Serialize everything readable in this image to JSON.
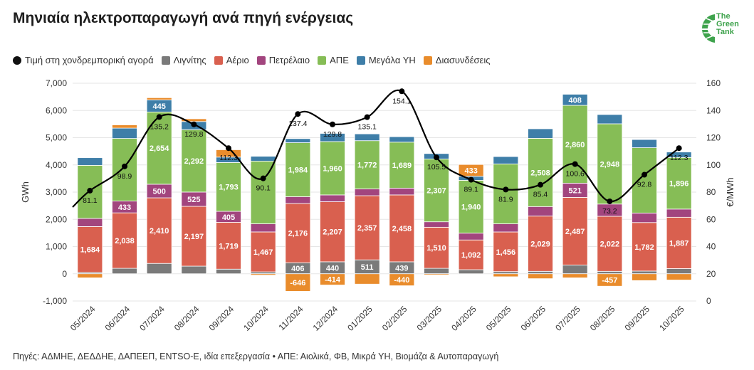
{
  "title": "Μηνιαία ηλεκτροπαραγωγή ανά πηγή ενέργειας",
  "logo": {
    "line1": "The",
    "line2": "Green",
    "line3": "Tank"
  },
  "source": "Πηγές: ΑΔΜΗΕ, ΔΕΔΔΗΕ, ΔΑΠΕΕΠ, ENTSO-E, ιδία επεξεργασία • ΑΠΕ: Αιολικά, ΦΒ, Μικρά ΥΗ, Βιομάζα & Αυτοπαραγωγή",
  "legend": [
    {
      "label": "Τιμή στη χονδρεμπορική αγορά",
      "color": "#111111",
      "kind": "dot"
    },
    {
      "label": "Λιγνίτης",
      "color": "#7a7a7a",
      "kind": "box"
    },
    {
      "label": "Αέριο",
      "color": "#d9604f",
      "kind": "box"
    },
    {
      "label": "Πετρέλαιο",
      "color": "#a2457e",
      "kind": "box"
    },
    {
      "label": "ΑΠΕ",
      "color": "#86bd56",
      "kind": "box"
    },
    {
      "label": "Μεγάλα ΥΗ",
      "color": "#3e7ea8",
      "kind": "box"
    },
    {
      "label": "Διασυνδέσεις",
      "color": "#e98c2c",
      "kind": "box"
    }
  ],
  "chart_data": {
    "type": "bar",
    "stacked": true,
    "categories": [
      "05/2024",
      "06/2024",
      "07/2024",
      "08/2024",
      "09/2024",
      "10/2024",
      "11/2024",
      "12/2024",
      "01/2025",
      "02/2025",
      "03/2025",
      "04/2025",
      "05/2025",
      "06/2025",
      "07/2025",
      "08/2025",
      "09/2025",
      "10/2025"
    ],
    "series": [
      {
        "name": "Λιγνίτης",
        "color": "#7a7a7a",
        "values": [
          50,
          200,
          380,
          280,
          170,
          70,
          406,
          440,
          511,
          439,
          200,
          150,
          80,
          90,
          320,
          90,
          100,
          190
        ],
        "labels": [
          null,
          null,
          null,
          null,
          null,
          null,
          "406",
          "440",
          "511",
          "439",
          null,
          null,
          null,
          null,
          null,
          null,
          null,
          null
        ]
      },
      {
        "name": "Αέριο",
        "color": "#d9604f",
        "values": [
          1684,
          2038,
          2410,
          2197,
          1719,
          1467,
          2176,
          2207,
          2357,
          2458,
          1510,
          1092,
          1456,
          2029,
          2487,
          2022,
          1782,
          1887
        ],
        "labels": [
          "1,684",
          "2,038",
          "2,410",
          "2,197",
          "1,719",
          "1,467",
          "2,176",
          "2,207",
          "2,357",
          "2,458",
          "1,510",
          "1,092",
          "1,456",
          "2,029",
          "2,487",
          "2,022",
          "1,782",
          "1,887"
        ]
      },
      {
        "name": "Πετρέλαιο",
        "color": "#a2457e",
        "values": [
          300,
          433,
          500,
          525,
          405,
          300,
          250,
          250,
          250,
          250,
          200,
          250,
          300,
          350,
          521,
          450,
          350,
          300
        ],
        "labels": [
          null,
          "433",
          "500",
          "525",
          "405",
          null,
          null,
          null,
          null,
          null,
          null,
          null,
          null,
          null,
          "521",
          null,
          null,
          null
        ]
      },
      {
        "name": "ΑΠΕ",
        "color": "#86bd56",
        "values": [
          1950,
          2300,
          2654,
          2292,
          1793,
          2300,
          1984,
          1960,
          1772,
          1689,
          2307,
          1940,
          2200,
          2508,
          2860,
          2948,
          2400,
          1896
        ],
        "labels": [
          null,
          null,
          "2,654",
          "2,292",
          "1,793",
          null,
          "1,984",
          "1,960",
          "1,772",
          "1,689",
          "2,307",
          "1,940",
          null,
          "2,508",
          "2,860",
          "2,948",
          null,
          "1,896"
        ]
      },
      {
        "name": "Μεγάλα ΥΗ",
        "color": "#3e7ea8",
        "values": [
          280,
          380,
          445,
          300,
          200,
          180,
          150,
          300,
          250,
          200,
          200,
          150,
          270,
          350,
          408,
          340,
          300,
          200
        ],
        "labels": [
          null,
          null,
          "445",
          null,
          null,
          null,
          null,
          null,
          null,
          null,
          null,
          null,
          null,
          null,
          "408",
          null,
          null,
          null
        ]
      },
      {
        "name": "Διασυνδέσεις",
        "color": "#e98c2c",
        "values": [
          -150,
          120,
          80,
          100,
          270,
          -50,
          -646,
          -414,
          -380,
          -440,
          -40,
          433,
          -110,
          -180,
          -150,
          -457,
          -250,
          -230
        ],
        "labels": [
          null,
          null,
          null,
          null,
          null,
          null,
          "-646",
          "-414",
          null,
          "-440",
          null,
          "433",
          null,
          null,
          null,
          "-457",
          null,
          null
        ]
      }
    ],
    "price": {
      "name": "Τιμή στη χονδρεμπορική αγορά",
      "values": [
        81.1,
        98.9,
        135.2,
        129.8,
        112.3,
        90.1,
        137.4,
        129.8,
        135.1,
        154.1,
        105.5,
        89.1,
        81.9,
        85.4,
        100.6,
        73.2,
        92.8,
        112.3
      ],
      "labels": [
        "81.1",
        "98.9",
        "135.2",
        "129.8",
        "112.3",
        "90.1",
        "137.4",
        "129.8",
        "135.1",
        "154.1",
        "105.5",
        "89.1",
        "81.9",
        "85.4",
        "100.6",
        "73.2",
        "92.8",
        "112.3"
      ]
    },
    "y_left": {
      "label": "GWh",
      "min": -1000,
      "max": 7000,
      "step": 1000,
      "ticks": [
        "-1,000",
        "0",
        "1,000",
        "2,000",
        "3,000",
        "4,000",
        "5,000",
        "6,000",
        "7,000"
      ]
    },
    "y_right": {
      "label": "€/MWh",
      "min": 0,
      "max": 160,
      "step": 20,
      "ticks": [
        "0",
        "20",
        "40",
        "60",
        "80",
        "100",
        "120",
        "140",
        "160"
      ]
    }
  }
}
